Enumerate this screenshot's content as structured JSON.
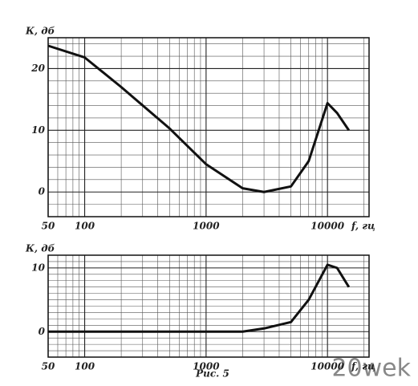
{
  "chart_data": [
    {
      "type": "line",
      "ylabel": "К, дб",
      "xlabel": "f, гц",
      "xscale": "log",
      "x": [
        50,
        100,
        200,
        500,
        1000,
        2000,
        3000,
        5000,
        7000,
        10000,
        12000,
        15000
      ],
      "series": [
        {
          "color": "#111111",
          "values": [
            23.7,
            21.8,
            17,
            10.3,
            4.5,
            0.6,
            0,
            0.9,
            5,
            14.4,
            12.8,
            10
          ]
        }
      ],
      "xlim": [
        50,
        22000
      ],
      "xticks": [
        50,
        100,
        1000,
        10000
      ],
      "xminor": [
        60,
        70,
        80,
        90,
        200,
        300,
        400,
        500,
        600,
        700,
        800,
        900,
        2000,
        3000,
        4000,
        5000,
        6000,
        7000,
        8000,
        9000,
        20000
      ],
      "ylim": [
        -4,
        25
      ],
      "yticks": [
        0,
        10,
        20
      ],
      "yminor": [
        -4,
        -2,
        2,
        4,
        6,
        8,
        12,
        14,
        16,
        18,
        22,
        24
      ],
      "grid": true
    },
    {
      "type": "line",
      "ylabel": "К, дб",
      "xlabel": "f, гц",
      "xscale": "log",
      "x": [
        50,
        500,
        2000,
        3000,
        5000,
        7000,
        10000,
        12000,
        15000
      ],
      "series": [
        {
          "color": "#111111",
          "values": [
            0,
            0,
            0,
            0.5,
            1.5,
            5,
            10.5,
            10,
            7
          ]
        }
      ],
      "xlim": [
        50,
        22000
      ],
      "xticks": [
        50,
        100,
        1000,
        10000
      ],
      "xminor": [
        60,
        70,
        80,
        90,
        200,
        300,
        400,
        500,
        600,
        700,
        800,
        900,
        2000,
        3000,
        4000,
        5000,
        6000,
        7000,
        8000,
        9000,
        20000
      ],
      "ylim": [
        -4,
        12
      ],
      "yticks": [
        0,
        10
      ],
      "yminor": [
        -4,
        -3,
        -2,
        -1,
        1,
        2,
        3,
        4,
        5,
        6,
        7,
        8,
        9,
        11,
        12
      ],
      "grid": true
    }
  ],
  "caption": "Рис. 5",
  "watermark": "20wek"
}
